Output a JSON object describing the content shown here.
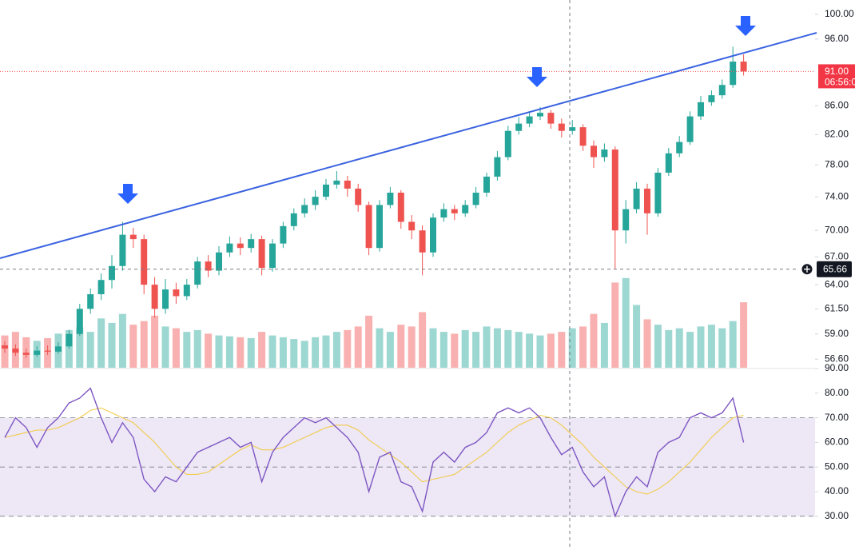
{
  "chart_data": [
    {
      "type": "candlestick",
      "log": true,
      "ylim": [
        55.8,
        102.4
      ],
      "up_color": "#26a69a",
      "down_color": "#ef5350",
      "yticks": [
        {
          "value": 100,
          "label": "100.00"
        },
        {
          "value": 96,
          "label": "96.00"
        },
        {
          "value": 86,
          "label": "86.00"
        },
        {
          "value": 82,
          "label": "82.00"
        },
        {
          "value": 78,
          "label": "78.00"
        },
        {
          "value": 74,
          "label": "74.00"
        },
        {
          "value": 70,
          "label": "70.00"
        },
        {
          "value": 67,
          "label": "67.00"
        },
        {
          "value": 64,
          "label": "64.00"
        },
        {
          "value": 61.5,
          "label": "61.50"
        },
        {
          "value": 59,
          "label": "59.00"
        },
        {
          "value": 56.6,
          "label": "56.60"
        }
      ],
      "open": [
        57.9,
        57.6,
        57.2,
        57.0,
        57.4,
        57.3,
        57.8,
        59.0,
        61.5,
        63.0,
        64.5,
        66.0,
        69.5,
        69.0,
        64.0,
        61.5,
        63.5,
        62.8,
        64.0,
        66.5,
        65.5,
        67.5,
        68.5,
        68.0,
        69.0,
        65.8,
        68.5,
        70.5,
        72.0,
        73.0,
        74.0,
        75.5,
        76.0,
        75.0,
        73.0,
        68.0,
        73.0,
        74.5,
        71.0,
        70.0,
        67.5,
        71.5,
        72.5,
        72.0,
        73.0,
        74.5,
        76.5,
        79.0,
        82.5,
        83.5,
        84.5,
        85.0,
        83.5,
        82.5,
        83.0,
        80.5,
        79.0,
        80.0,
        70.0,
        72.5,
        75.0,
        72.0,
        77.0,
        79.5,
        81.0,
        84.5,
        86.5,
        87.5,
        89.0,
        92.5
      ],
      "high": [
        58.3,
        58.0,
        57.6,
        57.8,
        57.9,
        58.2,
        59.4,
        62.0,
        63.6,
        65.2,
        67.2,
        71.0,
        70.3,
        69.5,
        64.8,
        64.6,
        64.2,
        64.6,
        67.0,
        67.2,
        68.2,
        69.3,
        69.2,
        69.6,
        69.4,
        69.0,
        71.0,
        72.6,
        73.8,
        74.8,
        76.2,
        77.2,
        76.6,
        75.6,
        73.4,
        73.6,
        75.2,
        74.8,
        71.8,
        70.6,
        72.0,
        73.2,
        73.0,
        73.6,
        75.2,
        77.0,
        79.8,
        83.2,
        84.4,
        85.2,
        85.8,
        85.4,
        84.2,
        84.0,
        83.4,
        81.2,
        80.8,
        80.4,
        73.6,
        75.8,
        75.6,
        77.6,
        80.2,
        81.8,
        85.2,
        87.4,
        88.2,
        89.8,
        94.8,
        93.6
      ],
      "low": [
        57.2,
        56.9,
        56.7,
        56.8,
        57.0,
        57.1,
        57.6,
        58.8,
        61.0,
        62.4,
        63.6,
        65.5,
        68.0,
        63.0,
        60.6,
        61.0,
        62.0,
        62.4,
        63.6,
        64.8,
        65.0,
        67.0,
        67.2,
        67.5,
        65.0,
        65.4,
        68.0,
        70.0,
        71.5,
        72.4,
        73.6,
        75.0,
        74.0,
        72.2,
        67.2,
        67.6,
        72.6,
        70.2,
        69.0,
        65.0,
        67.0,
        71.0,
        71.2,
        71.6,
        72.6,
        74.0,
        76.0,
        78.6,
        82.0,
        83.0,
        84.0,
        82.8,
        81.6,
        82.0,
        79.8,
        77.6,
        78.4,
        65.7,
        68.5,
        72.0,
        69.5,
        71.6,
        76.6,
        79.0,
        80.6,
        84.0,
        86.0,
        87.0,
        88.6,
        90.4
      ],
      "close": [
        57.6,
        57.2,
        57.0,
        57.4,
        57.3,
        57.8,
        59.0,
        61.5,
        63.0,
        64.5,
        66.0,
        69.5,
        69.0,
        64.0,
        61.5,
        63.5,
        62.8,
        64.0,
        66.5,
        65.5,
        67.5,
        68.5,
        68.0,
        69.0,
        65.8,
        68.5,
        70.5,
        72.0,
        73.0,
        74.0,
        75.5,
        76.0,
        75.0,
        73.0,
        68.0,
        73.0,
        74.5,
        71.0,
        70.0,
        67.5,
        71.5,
        72.5,
        72.0,
        73.0,
        74.5,
        76.5,
        79.0,
        82.5,
        83.5,
        84.5,
        85.0,
        83.5,
        82.5,
        83.0,
        80.5,
        79.0,
        80.0,
        70.0,
        72.5,
        75.0,
        72.0,
        77.0,
        79.5,
        81.0,
        84.5,
        86.5,
        87.5,
        89.0,
        92.5,
        91.0
      ],
      "volume": [
        36,
        40,
        34,
        30,
        33,
        38,
        42,
        45,
        40,
        55,
        50,
        60,
        48,
        52,
        58,
        46,
        44,
        40,
        42,
        38,
        36,
        35,
        34,
        33,
        40,
        36,
        34,
        32,
        30,
        34,
        36,
        40,
        42,
        46,
        58,
        44,
        40,
        48,
        46,
        62,
        44,
        40,
        38,
        42,
        40,
        46,
        44,
        42,
        40,
        38,
        36,
        38,
        40,
        44,
        46,
        60,
        50,
        95,
        100,
        70,
        54,
        48,
        42,
        44,
        40,
        46,
        48,
        44,
        52,
        73
      ],
      "current_price": {
        "value": 91,
        "label": "91.00"
      },
      "countdown": "06:56:0",
      "crosshair_price": 65.66
    },
    {
      "type": "line",
      "ylim": [
        16.3,
        90
      ],
      "band": [
        30,
        70
      ],
      "levels": [
        70,
        50,
        30
      ],
      "band_color": "#ede7f6",
      "yticks": [
        {
          "value": 90,
          "label": "90.00"
        },
        {
          "value": 80,
          "label": "80.00"
        },
        {
          "value": 70,
          "label": "70.00"
        },
        {
          "value": 60,
          "label": "60.00"
        },
        {
          "value": 50,
          "label": "50.00"
        },
        {
          "value": 40,
          "label": "40.00"
        },
        {
          "value": 30,
          "label": "30.00"
        }
      ],
      "series": [
        {
          "color": "#7e57c2",
          "values": [
            62,
            70,
            66,
            58,
            66,
            70,
            76,
            78,
            82,
            70,
            60,
            68,
            62,
            45,
            40,
            46,
            44,
            50,
            56,
            58,
            60,
            62,
            58,
            60,
            44,
            56,
            62,
            66,
            70,
            68,
            70,
            66,
            62,
            56,
            40,
            54,
            56,
            44,
            42,
            32,
            52,
            56,
            52,
            58,
            60,
            64,
            72,
            74,
            72,
            74,
            70,
            62,
            55,
            58,
            48,
            42,
            46,
            30,
            40,
            46,
            42,
            56,
            60,
            62,
            70,
            72,
            70,
            72,
            78,
            60
          ]
        },
        {
          "color": "#f2cc4b",
          "values": [
            62,
            63,
            64,
            65,
            65,
            66,
            68,
            70,
            73,
            74,
            72,
            70,
            68,
            64,
            60,
            55,
            50,
            47,
            47,
            48,
            51,
            54,
            57,
            59,
            57,
            57,
            58,
            60,
            62,
            64,
            66,
            67,
            67,
            65,
            61,
            58,
            55,
            52,
            48,
            44,
            45,
            46,
            47,
            50,
            53,
            56,
            60,
            64,
            67,
            69,
            71,
            70,
            67,
            63,
            59,
            54,
            50,
            46,
            42,
            40,
            39,
            41,
            44,
            48,
            52,
            57,
            62,
            66,
            70,
            71
          ]
        }
      ]
    }
  ]
}
